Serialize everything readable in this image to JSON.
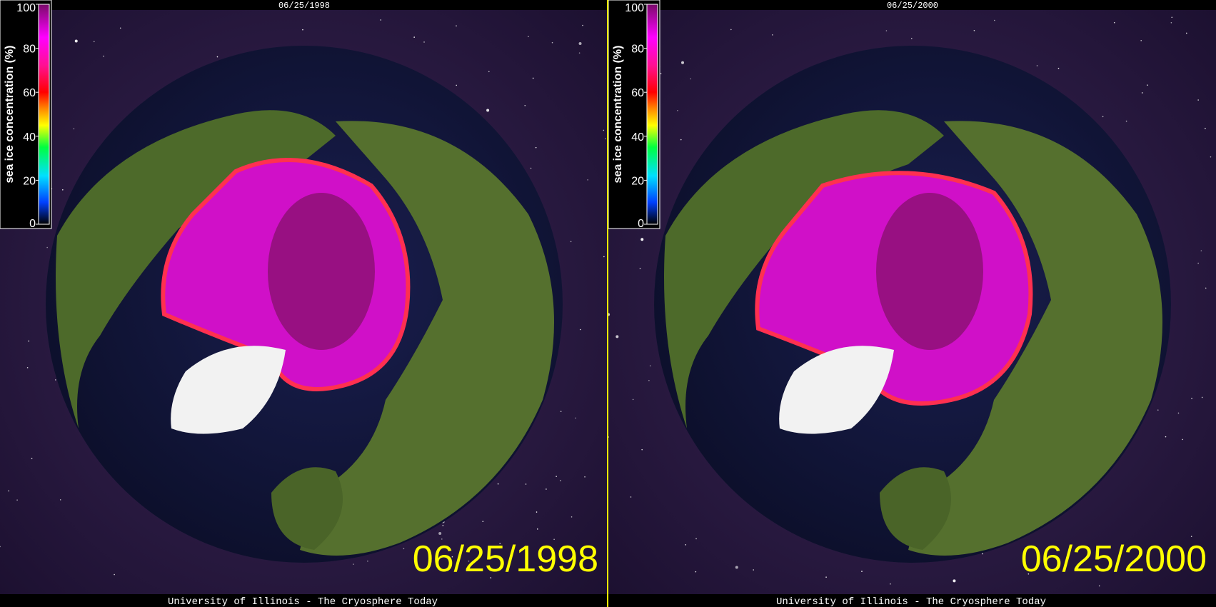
{
  "panels": [
    {
      "header_date": "06/25/1998",
      "date": "06/25/1998",
      "footer": "University of Illinois - The Cryosphere Today",
      "colorbar": {
        "label": "sea ice concentration (%)",
        "range": [
          0,
          100
        ],
        "ticks": [
          0,
          20,
          40,
          60,
          80,
          100
        ]
      }
    },
    {
      "header_date": "06/25/2000",
      "date": "06/25/2000",
      "footer": "University of Illinois - The Cryosphere Today",
      "colorbar": {
        "label": "sea ice concentration (%)",
        "range": [
          0,
          100
        ],
        "ticks": [
          0,
          20,
          40,
          60,
          80,
          100
        ]
      }
    }
  ]
}
